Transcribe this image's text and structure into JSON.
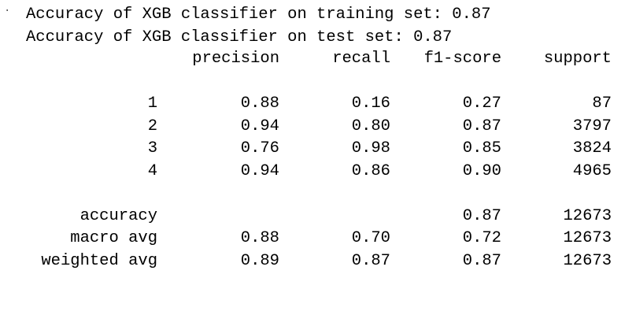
{
  "cell_marker": "·",
  "lines": {
    "train": "Accuracy of XGB classifier on training set: 0.87",
    "test": "Accuracy of XGB classifier on test set: 0.87"
  },
  "report": {
    "headers": [
      "precision",
      "recall",
      "f1-score",
      "support"
    ],
    "class_rows": [
      {
        "label": "1",
        "precision": "0.88",
        "recall": "0.16",
        "f1": "0.27",
        "support": "87"
      },
      {
        "label": "2",
        "precision": "0.94",
        "recall": "0.80",
        "f1": "0.87",
        "support": "3797"
      },
      {
        "label": "3",
        "precision": "0.76",
        "recall": "0.98",
        "f1": "0.85",
        "support": "3824"
      },
      {
        "label": "4",
        "precision": "0.94",
        "recall": "0.86",
        "f1": "0.90",
        "support": "4965"
      }
    ],
    "summary_rows": [
      {
        "label": "accuracy",
        "precision": "",
        "recall": "",
        "f1": "0.87",
        "support": "12673"
      },
      {
        "label": "macro avg",
        "precision": "0.88",
        "recall": "0.70",
        "f1": "0.72",
        "support": "12673"
      },
      {
        "label": "weighted avg",
        "precision": "0.89",
        "recall": "0.87",
        "f1": "0.87",
        "support": "12673"
      }
    ]
  }
}
